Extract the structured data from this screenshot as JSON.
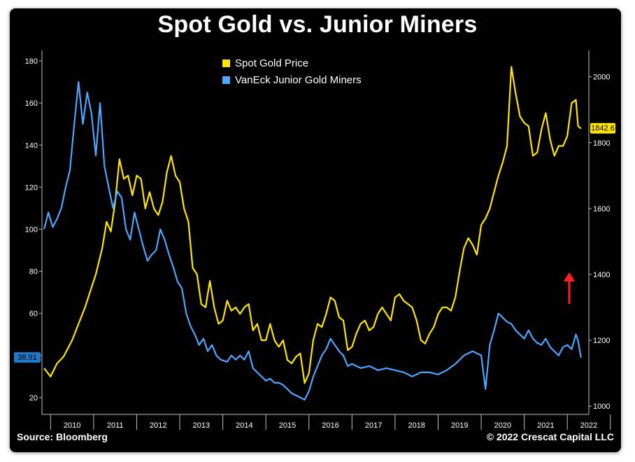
{
  "header": {
    "title": "Spot Gold vs. Junior Miners"
  },
  "footer": {
    "source": "Source: Bloomberg",
    "copyright": "© 2022 Crescat Capital LLC"
  },
  "chart_data": {
    "type": "line",
    "title": "Spot Gold vs. Junior Miners",
    "xlim": [
      2009.8,
      2022.5
    ],
    "x_ticks": [
      "2010",
      "2011",
      "2012",
      "2013",
      "2014",
      "2015",
      "2016",
      "2017",
      "2018",
      "2019",
      "2020",
      "2021",
      "2022"
    ],
    "left_axis": {
      "ylim": [
        12,
        185
      ],
      "ticks": [
        "20",
        "40",
        "60",
        "80",
        "100",
        "120",
        "140",
        "160",
        "180"
      ]
    },
    "right_axis": {
      "ylim": [
        975,
        2080
      ],
      "ticks": [
        "1000",
        "1200",
        "1400",
        "1600",
        "1800",
        "2000"
      ]
    },
    "legend": {
      "position": "top-center"
    },
    "series": [
      {
        "name": "Spot Gold Price",
        "color": "#ffe600",
        "axis": "right",
        "last_value_label": "1842.6",
        "x": [
          2009.85,
          2010.0,
          2010.15,
          2010.3,
          2010.5,
          2010.65,
          2010.8,
          2010.95,
          2011.05,
          2011.2,
          2011.3,
          2011.4,
          2011.5,
          2011.6,
          2011.7,
          2011.8,
          2011.9,
          2012.0,
          2012.1,
          2012.2,
          2012.3,
          2012.4,
          2012.5,
          2012.6,
          2012.7,
          2012.8,
          2012.9,
          2013.0,
          2013.1,
          2013.2,
          2013.3,
          2013.4,
          2013.5,
          2013.6,
          2013.7,
          2013.8,
          2013.9,
          2014.0,
          2014.1,
          2014.2,
          2014.3,
          2014.4,
          2014.5,
          2014.6,
          2014.7,
          2014.8,
          2014.9,
          2015.0,
          2015.1,
          2015.2,
          2015.3,
          2015.4,
          2015.5,
          2015.6,
          2015.7,
          2015.8,
          2015.9,
          2016.0,
          2016.1,
          2016.2,
          2016.3,
          2016.4,
          2016.5,
          2016.6,
          2016.7,
          2016.8,
          2016.9,
          2017.0,
          2017.1,
          2017.2,
          2017.3,
          2017.4,
          2017.5,
          2017.6,
          2017.7,
          2017.8,
          2017.9,
          2018.0,
          2018.1,
          2018.2,
          2018.3,
          2018.4,
          2018.5,
          2018.6,
          2018.7,
          2018.8,
          2018.9,
          2019.0,
          2019.1,
          2019.2,
          2019.3,
          2019.4,
          2019.5,
          2019.6,
          2019.7,
          2019.8,
          2019.9,
          2020.0,
          2020.1,
          2020.2,
          2020.3,
          2020.4,
          2020.5,
          2020.6,
          2020.7,
          2020.8,
          2020.9,
          2021.0,
          2021.1,
          2021.2,
          2021.3,
          2021.4,
          2021.5,
          2021.6,
          2021.7,
          2021.8,
          2021.9,
          2022.0,
          2022.1,
          2022.2,
          2022.25,
          2022.32
        ],
        "values": [
          1115,
          1090,
          1130,
          1150,
          1200,
          1250,
          1300,
          1360,
          1400,
          1480,
          1560,
          1530,
          1620,
          1750,
          1690,
          1700,
          1640,
          1700,
          1690,
          1600,
          1650,
          1600,
          1580,
          1620,
          1710,
          1760,
          1700,
          1680,
          1600,
          1560,
          1420,
          1400,
          1310,
          1300,
          1380,
          1300,
          1250,
          1260,
          1320,
          1290,
          1300,
          1280,
          1300,
          1310,
          1230,
          1250,
          1200,
          1200,
          1250,
          1200,
          1180,
          1200,
          1140,
          1130,
          1150,
          1160,
          1070,
          1100,
          1200,
          1250,
          1240,
          1280,
          1330,
          1320,
          1270,
          1260,
          1170,
          1180,
          1220,
          1250,
          1260,
          1230,
          1240,
          1280,
          1300,
          1280,
          1260,
          1330,
          1340,
          1320,
          1310,
          1300,
          1260,
          1200,
          1190,
          1220,
          1240,
          1280,
          1300,
          1300,
          1290,
          1330,
          1410,
          1480,
          1510,
          1490,
          1460,
          1550,
          1570,
          1600,
          1650,
          1700,
          1740,
          1790,
          2030,
          1950,
          1880,
          1860,
          1850,
          1760,
          1770,
          1840,
          1890,
          1810,
          1760,
          1790,
          1790,
          1820,
          1920,
          1930,
          1850,
          1842.6
        ]
      },
      {
        "name": "VanEck Junior Gold Miners",
        "color": "#4da6ff",
        "axis": "left",
        "last_value_label": "38.91",
        "x": [
          2009.85,
          2009.95,
          2010.05,
          2010.15,
          2010.25,
          2010.35,
          2010.45,
          2010.55,
          2010.65,
          2010.75,
          2010.85,
          2010.95,
          2011.05,
          2011.15,
          2011.25,
          2011.35,
          2011.45,
          2011.55,
          2011.65,
          2011.75,
          2011.85,
          2011.95,
          2012.05,
          2012.15,
          2012.25,
          2012.35,
          2012.45,
          2012.55,
          2012.65,
          2012.75,
          2012.85,
          2012.95,
          2013.05,
          2013.15,
          2013.25,
          2013.35,
          2013.45,
          2013.55,
          2013.65,
          2013.75,
          2013.85,
          2013.95,
          2014.1,
          2014.2,
          2014.3,
          2014.4,
          2014.5,
          2014.6,
          2014.7,
          2014.8,
          2014.9,
          2015.0,
          2015.1,
          2015.2,
          2015.3,
          2015.4,
          2015.5,
          2015.6,
          2015.7,
          2015.8,
          2015.9,
          2016.0,
          2016.1,
          2016.2,
          2016.3,
          2016.4,
          2016.5,
          2016.6,
          2016.7,
          2016.8,
          2016.9,
          2017.0,
          2017.2,
          2017.4,
          2017.6,
          2017.8,
          2018.0,
          2018.2,
          2018.4,
          2018.6,
          2018.8,
          2019.0,
          2019.2,
          2019.4,
          2019.6,
          2019.8,
          2020.0,
          2020.1,
          2020.2,
          2020.3,
          2020.4,
          2020.5,
          2020.6,
          2020.7,
          2020.8,
          2020.9,
          2021.0,
          2021.1,
          2021.2,
          2021.3,
          2021.4,
          2021.5,
          2021.6,
          2021.7,
          2021.8,
          2021.9,
          2022.0,
          2022.1,
          2022.2,
          2022.25,
          2022.32
        ],
        "values": [
          100,
          108,
          101,
          105,
          110,
          120,
          128,
          150,
          170,
          150,
          165,
          155,
          135,
          160,
          130,
          120,
          110,
          118,
          115,
          100,
          95,
          108,
          100,
          92,
          85,
          88,
          90,
          100,
          95,
          88,
          82,
          75,
          72,
          60,
          54,
          50,
          45,
          48,
          42,
          45,
          40,
          38,
          37,
          40,
          38,
          40,
          38,
          42,
          34,
          32,
          30,
          28,
          29,
          27,
          27,
          26,
          24,
          22,
          21,
          20,
          19,
          23,
          30,
          35,
          40,
          43,
          48,
          45,
          42,
          40,
          35,
          36,
          34,
          35,
          33,
          34,
          33,
          32,
          30,
          32,
          32,
          31,
          33,
          36,
          40,
          42,
          40,
          24,
          45,
          52,
          60,
          58,
          56,
          55,
          52,
          50,
          48,
          52,
          48,
          46,
          45,
          48,
          44,
          42,
          40,
          44,
          45,
          43,
          50,
          47,
          38.91
        ]
      }
    ]
  }
}
